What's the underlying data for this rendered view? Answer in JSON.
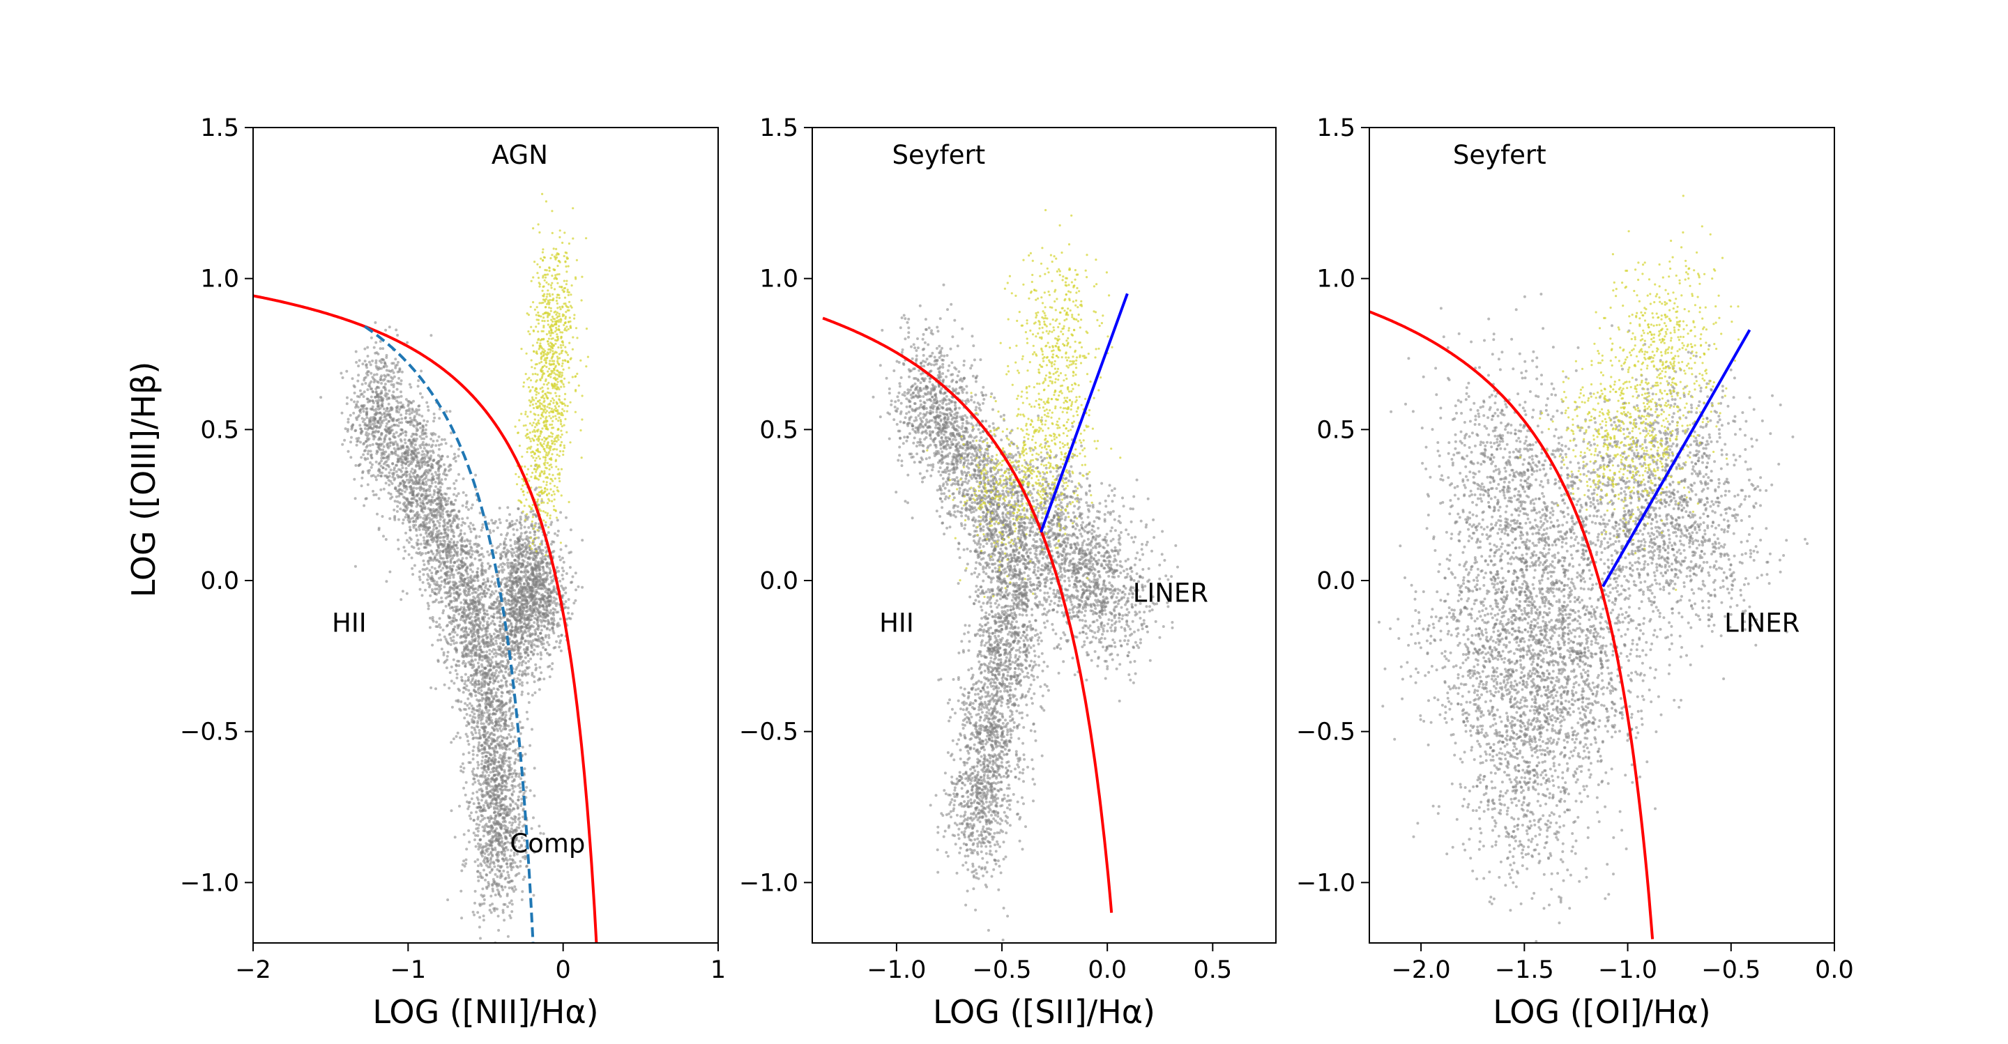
{
  "figure": {
    "ylabel": "LOG ([OIII]/Hβ)"
  },
  "colors": {
    "background": "#ffffff",
    "star_forming_points": "#808080",
    "seyfert_points": "#d6d63a",
    "max_starburst_curve": "#ff0000",
    "kauffmann_curve": "#1f77b4",
    "seyfert_liner_line": "#0000ff"
  },
  "chart_data": [
    {
      "type": "scatter",
      "xlabel": "LOG ([NII]/Hα)",
      "ylabel": "LOG ([OIII]/Hβ)",
      "xlim": [
        -2,
        1
      ],
      "ylim": [
        -1.2,
        1.5
      ],
      "xticks": [
        -2,
        -1,
        0,
        1
      ],
      "xtick_labels": [
        "−2",
        "−1",
        "0",
        "1"
      ],
      "yticks": [
        -1.0,
        -0.5,
        0.0,
        0.5,
        1.0,
        1.5
      ],
      "ytick_labels": [
        "−1.0",
        "−0.5",
        "0.0",
        "0.5",
        "1.0",
        "1.5"
      ],
      "annotations": [
        {
          "text": "AGN",
          "x": -0.28,
          "y": 1.38
        },
        {
          "text": "HII",
          "x": -1.38,
          "y": -0.17
        },
        {
          "text": "Comp",
          "x": -0.1,
          "y": -0.9
        }
      ],
      "curves": [
        {
          "kind": "kewley01",
          "style": "solid",
          "color": "#ff0000",
          "xrange": [
            -2.0,
            0.22
          ]
        },
        {
          "kind": "kauffmann03",
          "style": "dashed",
          "color": "#1f77b4",
          "xrange": [
            -1.28,
            -0.19
          ]
        }
      ],
      "clouds": [
        {
          "color": "#808080",
          "points": [
            [
              -1.2,
              0.55
            ],
            [
              -1.0,
              0.4
            ],
            [
              -0.85,
              0.25
            ],
            [
              -0.7,
              0.05
            ],
            [
              -0.58,
              -0.15
            ],
            [
              -0.48,
              -0.4
            ],
            [
              -0.42,
              -0.65
            ],
            [
              -0.42,
              -0.88
            ]
          ],
          "spread": [
            0.09,
            0.12
          ]
        },
        {
          "color": "#808080",
          "points": [
            [
              -0.25,
              0.05
            ],
            [
              -0.15,
              -0.05
            ],
            [
              -0.3,
              -0.15
            ]
          ],
          "spread": [
            0.1,
            0.1
          ]
        },
        {
          "color": "#d6d63a",
          "points": [
            [
              -0.15,
              0.35
            ],
            [
              -0.1,
              0.55
            ],
            [
              -0.07,
              0.75
            ],
            [
              -0.05,
              0.9
            ]
          ],
          "spread": [
            0.07,
            0.12
          ]
        }
      ]
    },
    {
      "type": "scatter",
      "xlabel": "LOG ([SII]/Hα)",
      "xlim": [
        -1.4,
        0.8
      ],
      "ylim": [
        -1.2,
        1.5
      ],
      "xticks": [
        -1.0,
        -0.5,
        0.0,
        0.5
      ],
      "xtick_labels": [
        "−1.0",
        "−0.5",
        "0.0",
        "0.5"
      ],
      "yticks": [
        -1.0,
        -0.5,
        0.0,
        0.5,
        1.0,
        1.5
      ],
      "ytick_labels": [
        "−1.0",
        "−0.5",
        "0.0",
        "0.5",
        "1.0",
        "1.5"
      ],
      "annotations": [
        {
          "text": "Seyfert",
          "x": -0.8,
          "y": 1.38
        },
        {
          "text": "HII",
          "x": -1.0,
          "y": -0.17
        },
        {
          "text": "LINER",
          "x": 0.3,
          "y": -0.07
        }
      ],
      "curves": [
        {
          "kind": "kewley01_sii",
          "style": "solid",
          "color": "#ff0000",
          "xrange": [
            -1.35,
            0.02
          ]
        },
        {
          "kind": "line",
          "style": "solid",
          "color": "#0000ff",
          "points": [
            [
              -0.315,
              0.16
            ],
            [
              0.095,
              0.95
            ]
          ]
        }
      ],
      "clouds": [
        {
          "color": "#808080",
          "points": [
            [
              -0.85,
              0.6
            ],
            [
              -0.7,
              0.45
            ],
            [
              -0.55,
              0.25
            ],
            [
              -0.45,
              0.0
            ],
            [
              -0.48,
              -0.25
            ],
            [
              -0.55,
              -0.5
            ],
            [
              -0.6,
              -0.75
            ]
          ],
          "spread": [
            0.08,
            0.12
          ]
        },
        {
          "color": "#808080",
          "points": [
            [
              -0.15,
              0.05
            ],
            [
              0.0,
              -0.05
            ],
            [
              -0.3,
              0.2
            ]
          ],
          "spread": [
            0.12,
            0.12
          ]
        },
        {
          "color": "#d6d63a",
          "points": [
            [
              -0.3,
              0.35
            ],
            [
              -0.25,
              0.6
            ],
            [
              -0.22,
              0.85
            ],
            [
              -0.5,
              0.3
            ]
          ],
          "spread": [
            0.1,
            0.13
          ]
        }
      ]
    },
    {
      "type": "scatter",
      "xlabel": "LOG ([OI]/Hα)",
      "xlim": [
        -2.25,
        0.0
      ],
      "ylim": [
        -1.2,
        1.5
      ],
      "xticks": [
        -2.0,
        -1.5,
        -1.0,
        -0.5,
        0.0
      ],
      "xtick_labels": [
        "−2.0",
        "−1.5",
        "−1.0",
        "−0.5",
        "0.0"
      ],
      "yticks": [
        -1.0,
        -0.5,
        0.0,
        0.5,
        1.0,
        1.5
      ],
      "ytick_labels": [
        "−1.0",
        "−0.5",
        "0.0",
        "0.5",
        "1.0",
        "1.5"
      ],
      "annotations": [
        {
          "text": "Seyfert",
          "x": -1.62,
          "y": 1.38
        },
        {
          "text": "LINER",
          "x": -0.35,
          "y": -0.17
        }
      ],
      "curves": [
        {
          "kind": "kewley01_oi",
          "style": "solid",
          "color": "#ff0000",
          "xrange": [
            -2.25,
            -0.88
          ]
        },
        {
          "kind": "line",
          "style": "solid",
          "color": "#0000ff",
          "points": [
            [
              -1.12,
              -0.02
            ],
            [
              -0.41,
              0.83
            ]
          ]
        }
      ],
      "clouds": [
        {
          "color": "#808080",
          "points": [
            [
              -1.5,
              -0.7
            ],
            [
              -1.45,
              -0.4
            ],
            [
              -1.4,
              -0.15
            ],
            [
              -1.45,
              0.15
            ],
            [
              -1.6,
              0.4
            ],
            [
              -1.2,
              -0.3
            ],
            [
              -1.7,
              -0.2
            ]
          ],
          "spread": [
            0.18,
            0.18
          ]
        },
        {
          "color": "#808080",
          "points": [
            [
              -1.0,
              0.2
            ],
            [
              -0.7,
              0.1
            ],
            [
              -0.8,
              0.4
            ]
          ],
          "spread": [
            0.2,
            0.15
          ]
        },
        {
          "color": "#d6d63a",
          "points": [
            [
              -0.95,
              0.4
            ],
            [
              -0.85,
              0.65
            ],
            [
              -0.8,
              0.85
            ],
            [
              -1.1,
              0.5
            ]
          ],
          "spread": [
            0.13,
            0.13
          ]
        }
      ]
    }
  ]
}
